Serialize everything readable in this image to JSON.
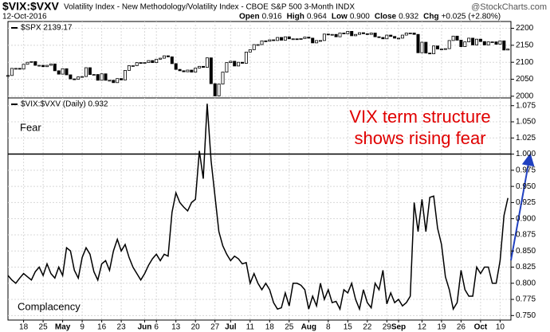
{
  "header": {
    "title": "$VIX:$VXV",
    "subtitle": "Volatility Index - New Methodology/Volatility Index - CBOE S&P 500 3-Month INDX",
    "watermark": "@StockCharts.com",
    "date": "12-Oct-2016",
    "quote": [
      {
        "label": "Open",
        "value": "0.916"
      },
      {
        "label": "High",
        "value": "0.964"
      },
      {
        "label": "Low",
        "value": "0.900"
      },
      {
        "label": "Close",
        "value": "0.932"
      },
      {
        "label": "Chg",
        "value": "+0.025 (+2.80%)"
      }
    ]
  },
  "chart_data": [
    {
      "type": "candlestick",
      "grid": true,
      "series": [
        {
          "name": "$SPX 2139.17",
          "color": "#000000",
          "values": [
            2061,
            2082,
            2082,
            2080,
            2094,
            2100,
            2102,
            2091,
            2091,
            2087,
            2091,
            2095,
            2075,
            2065,
            2081,
            2063,
            2051,
            2050,
            2057,
            2058,
            2084,
            2064,
            2064,
            2047,
            2066,
            2047,
            2047,
            2040,
            2052,
            2048,
            2076,
            2090,
            2090,
            2099,
            2097,
            2099,
            2105,
            2099,
            2109,
            2112,
            2119,
            2116,
            2096,
            2079,
            2075,
            2072,
            2077,
            2071,
            2083,
            2088,
            2085,
            2113,
            2037,
            2001,
            2036,
            2071,
            2099,
            2103,
            2089,
            2100,
            2097,
            2130,
            2137,
            2152,
            2152,
            2163,
            2162,
            2166,
            2164,
            2173,
            2165,
            2175,
            2169,
            2169,
            2167,
            2170,
            2174,
            2171,
            2157,
            2164,
            2164,
            2183,
            2181,
            2182,
            2175,
            2186,
            2184,
            2191,
            2178,
            2182,
            2187,
            2184,
            2182,
            2186,
            2175,
            2173,
            2169,
            2180,
            2176,
            2171,
            2171,
            2180,
            2186,
            2186,
            2182,
            2128,
            2159,
            2127,
            2125,
            2148,
            2139,
            2139,
            2140,
            2164,
            2177,
            2165,
            2146,
            2160,
            2171,
            2151,
            2168,
            2161,
            2151,
            2160,
            2160,
            2153,
            2163,
            2136,
            2139
          ]
        }
      ],
      "ylim": [
        1995,
        2220
      ],
      "yticks": [
        2000,
        2050,
        2100,
        2150,
        2200
      ]
    },
    {
      "type": "line",
      "grid": true,
      "categories": [
        null,
        null,
        null,
        null,
        "18",
        null,
        null,
        null,
        null,
        "25",
        null,
        null,
        null,
        null,
        "May",
        null,
        null,
        null,
        null,
        "9",
        null,
        null,
        null,
        null,
        "16",
        null,
        null,
        null,
        null,
        "23",
        null,
        null,
        null,
        null,
        null,
        "Jun",
        null,
        null,
        "6",
        null,
        null,
        null,
        null,
        "13",
        null,
        null,
        null,
        null,
        "20",
        null,
        null,
        null,
        null,
        "27",
        null,
        null,
        null,
        "Jul",
        null,
        null,
        null,
        null,
        "11",
        null,
        null,
        null,
        null,
        "18",
        null,
        null,
        null,
        null,
        "25",
        null,
        null,
        null,
        null,
        "Aug",
        null,
        null,
        null,
        null,
        "8",
        null,
        null,
        null,
        null,
        "15",
        null,
        null,
        null,
        null,
        "22",
        null,
        null,
        null,
        null,
        "29",
        null,
        null,
        "Sep",
        null,
        null,
        null,
        null,
        null,
        "12",
        null,
        null,
        null,
        null,
        "19",
        null,
        null,
        null,
        null,
        "26",
        null,
        null,
        null,
        null,
        "Oct",
        null,
        null,
        null,
        null,
        "10",
        null,
        null
      ],
      "series": [
        {
          "name": "$VIX:$VXV (Daily) 0.932",
          "color": "#000000",
          "values": [
            0.812,
            0.805,
            0.8,
            0.808,
            0.815,
            0.81,
            0.805,
            0.818,
            0.825,
            0.812,
            0.83,
            0.815,
            0.808,
            0.825,
            0.812,
            0.855,
            0.85,
            0.82,
            0.808,
            0.84,
            0.855,
            0.845,
            0.818,
            0.805,
            0.83,
            0.835,
            0.82,
            0.85,
            0.868,
            0.85,
            0.86,
            0.84,
            0.825,
            0.815,
            0.805,
            0.815,
            0.828,
            0.838,
            0.845,
            0.835,
            0.845,
            0.842,
            0.91,
            0.94,
            0.925,
            0.918,
            0.912,
            0.925,
            0.93,
            1.005,
            0.962,
            1.078,
            0.99,
            0.935,
            0.88,
            0.858,
            0.845,
            0.835,
            0.842,
            0.838,
            0.83,
            0.832,
            0.8,
            0.815,
            0.8,
            0.79,
            0.8,
            0.79,
            0.77,
            0.76,
            0.762,
            0.785,
            0.765,
            0.8,
            0.8,
            0.797,
            0.79,
            0.76,
            0.78,
            0.765,
            0.8,
            0.775,
            0.79,
            0.77,
            0.772,
            0.76,
            0.79,
            0.785,
            0.8,
            0.775,
            0.76,
            0.79,
            0.77,
            0.762,
            0.8,
            0.79,
            0.82,
            0.768,
            0.785,
            0.77,
            0.775,
            0.765,
            0.77,
            0.78,
            0.925,
            0.88,
            0.93,
            0.88,
            0.933,
            0.935,
            0.885,
            0.86,
            0.81,
            0.79,
            0.76,
            0.77,
            0.82,
            0.79,
            0.78,
            0.78,
            0.825,
            0.815,
            0.825,
            0.825,
            0.8,
            0.8,
            0.835,
            0.905,
            0.932
          ]
        }
      ],
      "ylim": [
        0.743,
        1.087
      ],
      "yticks": [
        {
          "value": 0.75,
          "label": "0.750"
        },
        0.775,
        {
          "value": 0.8,
          "label": "0.800"
        },
        0.825,
        {
          "value": 0.85,
          "label": "0.850"
        },
        0.875,
        {
          "value": 0.9,
          "label": "0.900"
        },
        0.925,
        {
          "value": 0.95,
          "label": "0.950"
        },
        0.975,
        {
          "value": 1,
          "label": "1.000"
        },
        1.025,
        {
          "value": 1.05,
          "label": "1.050"
        },
        1.075
      ],
      "hline": 1,
      "annotations": [
        "Fear",
        "Complacency"
      ],
      "callout": [
        "VIX term structure",
        "shows rising fear"
      ]
    }
  ]
}
